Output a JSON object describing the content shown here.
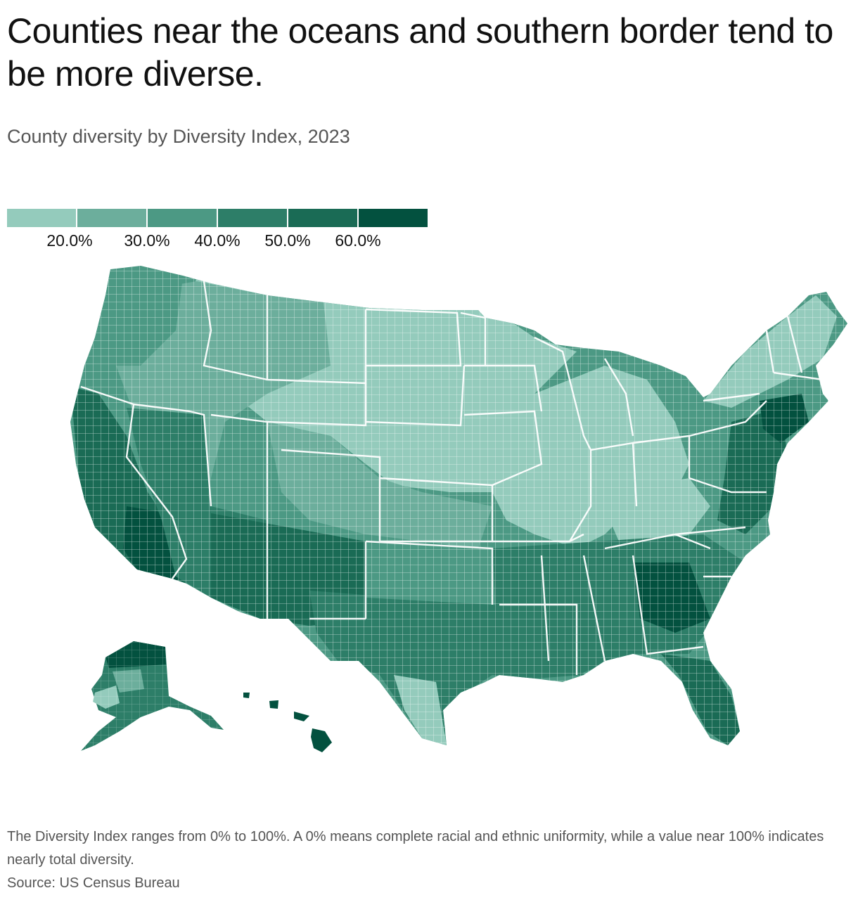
{
  "title": "Counties near the oceans and southern border tend to be more diverse.",
  "subtitle": "County diversity by Diversity Index, 2023",
  "legend": {
    "colors": [
      "#94cbbc",
      "#6cae9c",
      "#4c9984",
      "#2d7e68",
      "#1a6b55",
      "#03513f"
    ],
    "labels": [
      "20.0%",
      "30.0%",
      "40.0%",
      "50.0%",
      "60.0%"
    ]
  },
  "map": {
    "type": "choropleth",
    "measure": "Diversity Index",
    "year": "2023",
    "regions": [
      "Contiguous United States",
      "Alaska",
      "Hawaii"
    ],
    "pattern": "Higher diversity near the Pacific and Atlantic coasts, the Gulf Coast and the southern border; lower diversity in the northern interior and Appalachia"
  },
  "footer": {
    "note": "The Diversity Index ranges from 0% to 100%. A 0% means complete racial and ethnic uniformity, while a value near 100% indicates nearly total diversity.",
    "source": "Source: US Census Bureau"
  }
}
